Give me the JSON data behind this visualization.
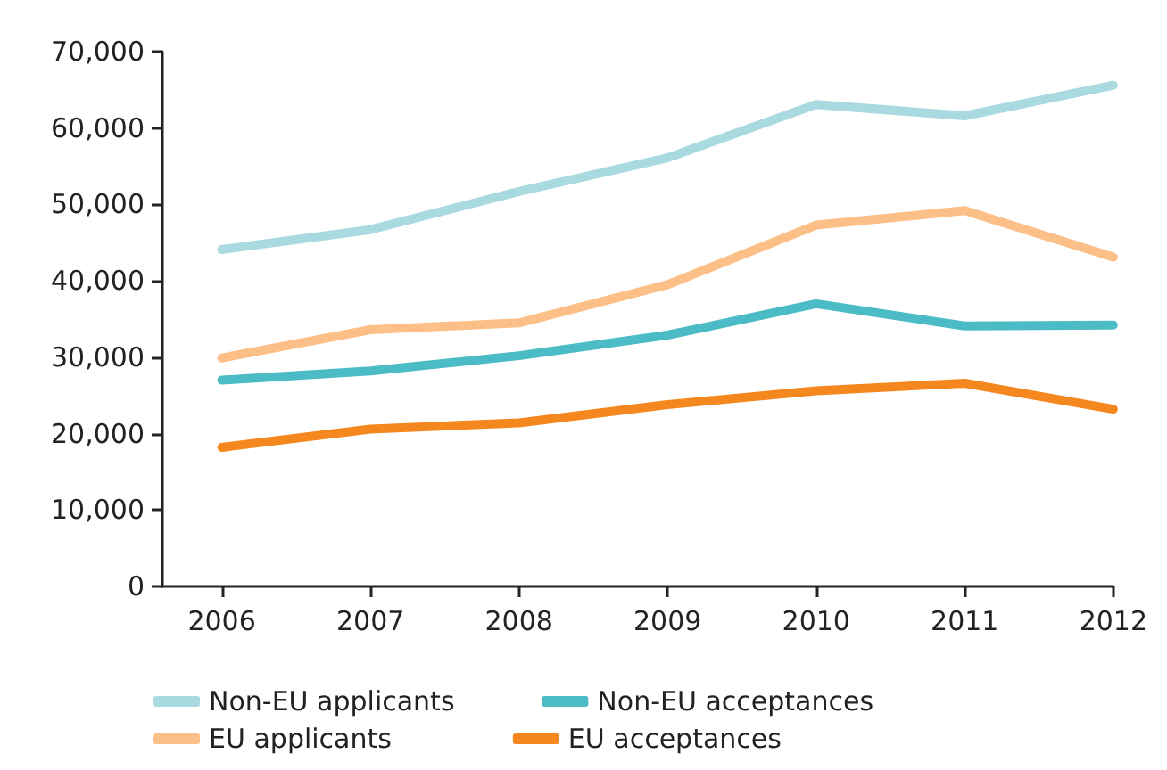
{
  "chart_data": {
    "type": "line",
    "x": [
      2006,
      2007,
      2008,
      2009,
      2010,
      2011,
      2012
    ],
    "series": [
      {
        "name": "Non-EU applicants",
        "color": "#a8dadf",
        "values": [
          44100,
          46700,
          51700,
          56100,
          63100,
          61600,
          65600
        ]
      },
      {
        "name": "Non-EU acceptances",
        "color": "#4bbcc6",
        "values": [
          27000,
          28200,
          30200,
          32900,
          37000,
          34100,
          34200
        ]
      },
      {
        "name": "EU applicants",
        "color": "#fdbf88",
        "values": [
          29900,
          33600,
          34500,
          39500,
          47300,
          49200,
          43100
        ]
      },
      {
        "name": "EU acceptances",
        "color": "#f5871f",
        "values": [
          18200,
          20600,
          21400,
          23800,
          25600,
          26600,
          23200
        ]
      }
    ],
    "xlim": [
      2005.6,
      2012
    ],
    "xticks": [
      2006,
      2007,
      2008,
      2009,
      2010,
      2011,
      2012
    ],
    "ylim": [
      0,
      70000
    ],
    "yticks": [
      0,
      {
        "value": 10000,
        "label": "10,000"
      },
      {
        "value": 20000,
        "label": "20,000"
      },
      {
        "value": 30000,
        "label": "30,000"
      },
      {
        "value": 40000,
        "label": "40,000"
      },
      {
        "value": 50000,
        "label": "50,000"
      },
      {
        "value": 60000,
        "label": "60,000"
      },
      {
        "value": 70000,
        "label": "70,000"
      }
    ],
    "grid": false,
    "legend": "bottom left",
    "marker": "none",
    "line_style": "solid"
  }
}
